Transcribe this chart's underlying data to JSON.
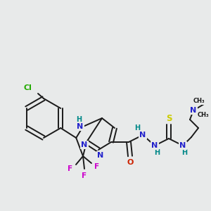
{
  "bg_color": "#e8eaea",
  "bond_color": "#1a1a1a",
  "atom_colors": {
    "Cl": "#22aa00",
    "N": "#2222cc",
    "O": "#cc2200",
    "F": "#cc00cc",
    "S": "#cccc00",
    "H": "#008888",
    "C": "#1a1a1a"
  },
  "figsize": [
    3.0,
    3.0
  ],
  "dpi": 100
}
